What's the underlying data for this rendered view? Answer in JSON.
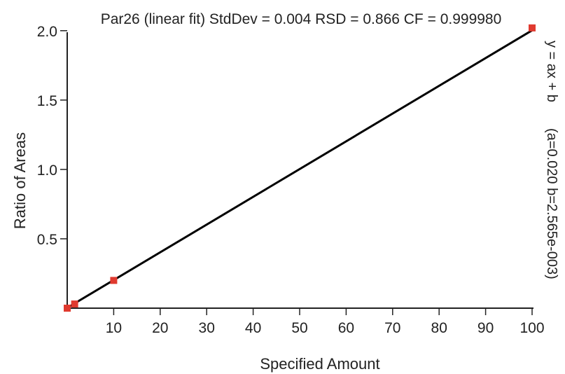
{
  "chart_data": {
    "type": "scatter",
    "title": "Par26 (linear fit) StdDev = 0.004 RSD = 0.866 CF = 0.999980",
    "xlabel": "Specified Amount",
    "ylabel": "Ratio of Areas",
    "xlim": [
      0,
      100
    ],
    "ylim": [
      0,
      2.1
    ],
    "xticks": [
      10,
      20,
      30,
      40,
      50,
      60,
      70,
      80,
      90,
      100
    ],
    "yticks": [
      0.5,
      1.0,
      1.5,
      2.0
    ],
    "xtick_labels": [
      "10",
      "20",
      "30",
      "40",
      "50",
      "60",
      "70",
      "80",
      "90",
      "100"
    ],
    "ytick_labels": [
      "0.5",
      "1.0",
      "1.5",
      "2.0"
    ],
    "grid": false,
    "points": [
      {
        "x": 0,
        "y": 0.0
      },
      {
        "x": 1.6,
        "y": 0.03
      },
      {
        "x": 10,
        "y": 0.2
      },
      {
        "x": 100,
        "y": 2.02
      }
    ],
    "fit": {
      "type": "linear",
      "a": 0.02,
      "b": 0.002565
    },
    "equation_lines": [
      "y = ax + b",
      "(a=0.020 b=2.565e-003)"
    ],
    "colors": {
      "points": "#e03a2f",
      "fit_line": "#000000",
      "axis": "#222222"
    }
  }
}
